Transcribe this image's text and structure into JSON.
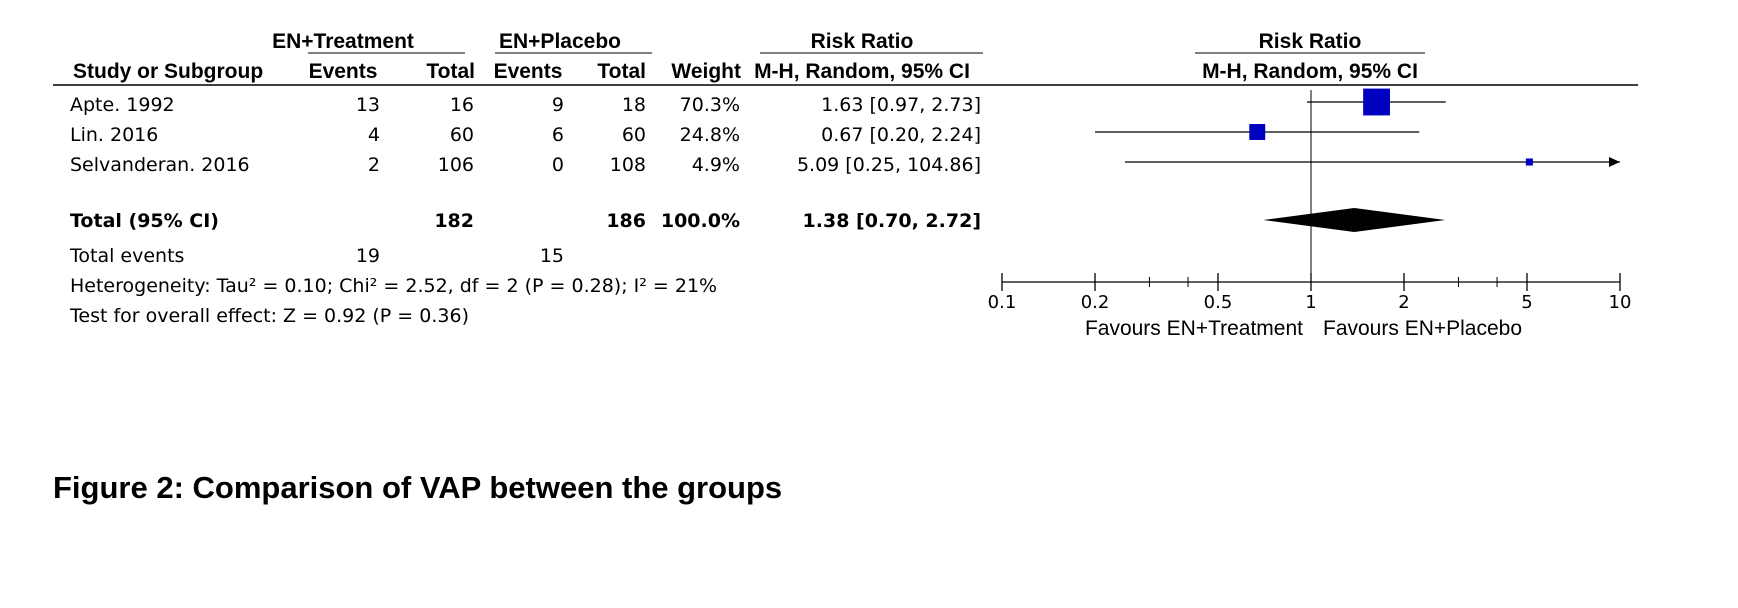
{
  "table": {
    "group_headers": {
      "treatment": "EN+Treatment",
      "placebo": "EN+Placebo",
      "rr": "Risk Ratio",
      "plot": "Risk Ratio"
    },
    "columns": {
      "study": "Study or Subgroup",
      "t_events": "Events",
      "t_total": "Total",
      "p_events": "Events",
      "p_total": "Total",
      "weight": "Weight",
      "method": "M-H, Random, 95% CI",
      "plot_method": "M-H, Random, 95% CI"
    },
    "rows": [
      {
        "study": "Apte. 1992",
        "t_events": "13",
        "t_total": "16",
        "p_events": "9",
        "p_total": "18",
        "weight": "70.3%",
        "ci": "1.63 [0.97, 2.73]"
      },
      {
        "study": "Lin. 2016",
        "t_events": "4",
        "t_total": "60",
        "p_events": "6",
        "p_total": "60",
        "weight": "24.8%",
        "ci": "0.67 [0.20, 2.24]"
      },
      {
        "study": "Selvanderan. 2016",
        "t_events": "2",
        "t_total": "106",
        "p_events": "0",
        "p_total": "108",
        "weight": "4.9%",
        "ci": "5.09 [0.25, 104.86]"
      }
    ],
    "total": {
      "label": "Total (95% CI)",
      "t_total": "182",
      "p_total": "186",
      "weight": "100.0%",
      "ci": "1.38 [0.70, 2.72]"
    },
    "events": {
      "label": "Total events",
      "t_events": "19",
      "p_events": "15"
    },
    "heterogeneity": "Heterogeneity: Tau² = 0.10; Chi² = 2.52, df = 2 (P = 0.28); I² = 21%",
    "overall_effect": "Test for overall effect: Z = 0.92 (P = 0.36)"
  },
  "chart_data": {
    "type": "forest",
    "scale": "log",
    "xlim": [
      0.1,
      10
    ],
    "ticks": [
      "0.1",
      "0.2",
      "0.5",
      "1",
      "2",
      "5",
      "10"
    ],
    "tick_values": [
      0.1,
      0.2,
      0.5,
      1,
      2,
      5,
      10
    ],
    "null_value": 1,
    "favours_left": "Favours EN+Treatment",
    "favours_right": "Favours EN+Placebo",
    "studies": [
      {
        "name": "Apte. 1992",
        "rr": 1.63,
        "lower": 0.97,
        "upper": 2.73,
        "weight": 70.3
      },
      {
        "name": "Lin. 2016",
        "rr": 0.67,
        "lower": 0.2,
        "upper": 2.24,
        "weight": 24.8
      },
      {
        "name": "Selvanderan. 2016",
        "rr": 5.09,
        "lower": 0.25,
        "upper": 104.86,
        "weight": 4.9
      }
    ],
    "pooled": {
      "rr": 1.38,
      "lower": 0.7,
      "upper": 2.72
    },
    "marker_color": "#0000c0"
  },
  "caption": "Figure 2: Comparison of VAP between the groups"
}
